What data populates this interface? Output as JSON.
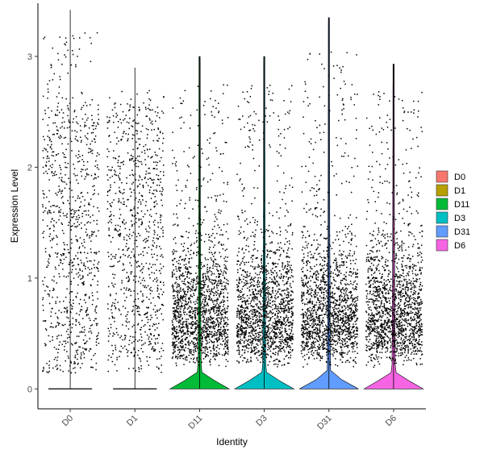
{
  "chart_data": {
    "type": "violin",
    "xlabel": "Identity",
    "ylabel": "Expression Level",
    "ylim": [
      -0.18,
      3.48
    ],
    "yticks": [
      0,
      1,
      2,
      3
    ],
    "grid": false,
    "legend_position": "right",
    "categories": [
      "D0",
      "D1",
      "D11",
      "D3",
      "D31",
      "D6"
    ],
    "series": [
      {
        "name": "D0",
        "color": "#F8766D",
        "max": 3.42,
        "fraction_zero": 0.0
      },
      {
        "name": "D1",
        "color": "#B79F00",
        "max": 2.9,
        "fraction_zero": 0.0
      },
      {
        "name": "D11",
        "color": "#00BA38",
        "max": 3.0,
        "fraction_zero": 0.65
      },
      {
        "name": "D3",
        "color": "#00BFC4",
        "max": 3.0,
        "fraction_zero": 0.7
      },
      {
        "name": "D31",
        "color": "#619CFF",
        "max": 3.35,
        "fraction_zero": 0.55
      },
      {
        "name": "D6",
        "color": "#F564E3",
        "max": 2.93,
        "fraction_zero": 0.8
      }
    ]
  }
}
